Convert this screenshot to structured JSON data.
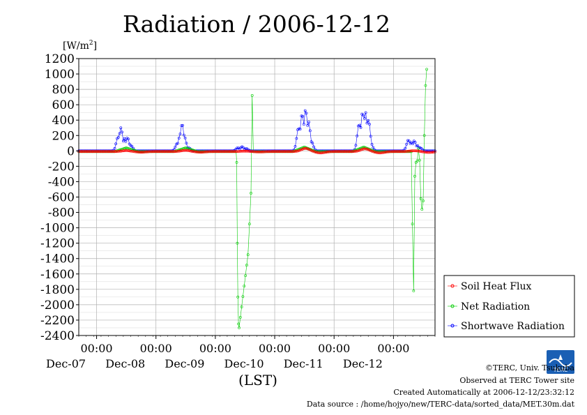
{
  "chart_data": {
    "type": "line",
    "title": "Radiation / 2006-12-12",
    "yunit_main": "[W/m",
    "yunit_sup": "2",
    "yunit_close": "]",
    "xlabel": "(LST)",
    "ylim": [
      -2400,
      1200
    ],
    "yticks": [
      1200,
      1000,
      800,
      600,
      400,
      200,
      0,
      -200,
      -400,
      -600,
      -800,
      -1000,
      -1200,
      -1400,
      -1600,
      -1800,
      -2000,
      -2200,
      -2400
    ],
    "x_unit": "day offset from 2006-12-06 00:00",
    "xlim": [
      0.7,
      6.7
    ],
    "xticks": [
      {
        "x": 1.0,
        "time": "00:00",
        "date": "Dec-07"
      },
      {
        "x": 2.0,
        "time": "00:00",
        "date": "Dec-08"
      },
      {
        "x": 3.0,
        "time": "00:00",
        "date": "Dec-09"
      },
      {
        "x": 4.0,
        "time": "00:00",
        "date": "Dec-10"
      },
      {
        "x": 5.0,
        "time": "00:00",
        "date": "Dec-11"
      },
      {
        "x": 6.0,
        "time": "00:00",
        "date": "Dec-12"
      }
    ],
    "grid": true,
    "legend_position": "bottom-right",
    "series": [
      {
        "name": "Soil Heat Flux",
        "color": "#ff0000",
        "marker": "circle",
        "days": [
          {
            "start": 0.7,
            "peak_x": 1.5,
            "peak": 12,
            "trough": -15
          },
          {
            "start": 1.7,
            "peak_x": 2.5,
            "peak": 15,
            "trough": -15
          },
          {
            "start": 2.7,
            "peak_x": 3.5,
            "peak": 5,
            "trough": -10
          },
          {
            "start": 3.7,
            "peak_x": 4.52,
            "peak": 40,
            "trough": -30
          },
          {
            "start": 4.7,
            "peak_x": 5.52,
            "peak": 35,
            "trough": -30
          },
          {
            "start": 5.7,
            "peak_x": 6.35,
            "peak": 10,
            "trough": -20
          }
        ]
      },
      {
        "name": "Net Radiation",
        "color": "#00cc00",
        "marker": "circle",
        "points": [
          [
            0.7,
            -10
          ],
          [
            1.3,
            -10
          ],
          [
            1.5,
            40
          ],
          [
            1.7,
            -10
          ],
          [
            2.3,
            -10
          ],
          [
            2.5,
            40
          ],
          [
            2.7,
            -10
          ],
          [
            3.35,
            -10
          ],
          [
            3.36,
            -150
          ],
          [
            3.37,
            -1200
          ],
          [
            3.38,
            -1900
          ],
          [
            3.39,
            -2250
          ],
          [
            3.4,
            -2300
          ],
          [
            3.55,
            -1350
          ],
          [
            3.6,
            -550
          ],
          [
            3.62,
            720
          ],
          [
            3.64,
            -10
          ],
          [
            4.3,
            -10
          ],
          [
            4.5,
            50
          ],
          [
            4.7,
            -10
          ],
          [
            5.3,
            -10
          ],
          [
            5.5,
            50
          ],
          [
            5.7,
            -10
          ],
          [
            6.3,
            -10
          ],
          [
            6.32,
            -950
          ],
          [
            6.34,
            -1820
          ],
          [
            6.36,
            -330
          ],
          [
            6.38,
            -150
          ],
          [
            6.4,
            -130
          ],
          [
            6.42,
            30
          ],
          [
            6.44,
            -120
          ],
          [
            6.46,
            -620
          ],
          [
            6.48,
            -760
          ],
          [
            6.5,
            -650
          ],
          [
            6.52,
            200
          ],
          [
            6.54,
            850
          ],
          [
            6.56,
            1060
          ]
        ]
      },
      {
        "name": "Shortwave Radiation",
        "color": "#0000ff",
        "marker": "circle",
        "days": [
          {
            "center": 1.45,
            "peaks": [
              [
                1.36,
                180
              ],
              [
                1.41,
                300
              ],
              [
                1.47,
                160
              ],
              [
                1.52,
                170
              ],
              [
                1.58,
                70
              ]
            ]
          },
          {
            "center": 2.44,
            "peaks": [
              [
                2.36,
                100
              ],
              [
                2.41,
                220
              ],
              [
                2.44,
                350
              ],
              [
                2.48,
                180
              ],
              [
                2.55,
                40
              ]
            ]
          },
          {
            "center": 3.45,
            "peaks": [
              [
                3.38,
                40
              ],
              [
                3.45,
                55
              ],
              [
                3.52,
                30
              ]
            ]
          },
          {
            "center": 4.5,
            "peaks": [
              [
                4.4,
                300
              ],
              [
                4.46,
                480
              ],
              [
                4.52,
                540
              ],
              [
                4.57,
                380
              ],
              [
                4.62,
                120
              ]
            ]
          },
          {
            "center": 5.5,
            "peaks": [
              [
                5.42,
                350
              ],
              [
                5.48,
                500
              ],
              [
                5.53,
                500
              ],
              [
                5.58,
                400
              ],
              [
                5.62,
                100
              ]
            ]
          },
          {
            "center": 6.35,
            "peaks": [
              [
                6.25,
                140
              ],
              [
                6.3,
                110
              ],
              [
                6.35,
                130
              ],
              [
                6.4,
                70
              ],
              [
                6.45,
                40
              ]
            ]
          }
        ]
      }
    ]
  },
  "footer": {
    "copyright": "©TERC, Univ. Tsukuba",
    "observed": "Observed at TERC Tower site",
    "created": "Created Automatically at 2006-12-12/23:32:12",
    "source": "Data source : /home/hojyo/new/TERC-data/sorted_data/MET.30m.dat",
    "logo_text": "TERC"
  }
}
